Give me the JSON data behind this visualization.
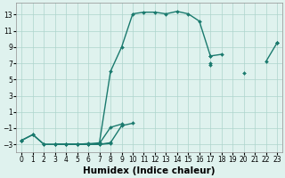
{
  "xlabel": "Humidex (Indice chaleur)",
  "x_data": [
    0,
    1,
    2,
    3,
    4,
    5,
    6,
    7,
    8,
    9,
    10,
    11,
    12,
    13,
    14,
    15,
    16,
    17,
    18,
    19,
    20,
    21,
    22,
    23
  ],
  "line_main": {
    "y": [
      -2.5,
      -1.8,
      -3.0,
      -3.0,
      -3.0,
      -3.0,
      -3.0,
      -2.8,
      6.0,
      9.0,
      13.1,
      13.3,
      13.3,
      13.1,
      13.4,
      13.1,
      12.2,
      7.9,
      null,
      null,
      null,
      null,
      null,
      null
    ],
    "color": "#1a7a6e",
    "linewidth": 1.0
  },
  "line_diag1": {
    "y": [
      -2.5,
      null,
      null,
      -3.0,
      -3.0,
      -3.0,
      -3.0,
      -3.0,
      -2.8,
      -0.7,
      -0.4,
      null,
      null,
      null,
      null,
      null,
      null,
      7.0,
      null,
      null,
      null,
      null,
      null,
      9.5
    ],
    "color": "#1a7a6e",
    "linewidth": 1.0
  },
  "line_diag2": {
    "y": [
      -2.5,
      null,
      null,
      -3.0,
      -3.0,
      -3.0,
      -2.9,
      -2.9,
      -0.9,
      -0.5,
      null,
      null,
      null,
      null,
      null,
      null,
      null,
      6.8,
      null,
      null,
      null,
      null,
      null,
      9.5
    ],
    "color": "#1a7a6e",
    "linewidth": 1.0
  },
  "line_zigzag": {
    "y": [
      null,
      null,
      null,
      null,
      null,
      null,
      null,
      null,
      null,
      null,
      null,
      null,
      null,
      null,
      null,
      null,
      null,
      7.9,
      8.1,
      null,
      5.8,
      null,
      7.2,
      9.5
    ],
    "color": "#1a7a6e",
    "linewidth": 1.0
  },
  "line_flat": {
    "y": [
      -2.5,
      -1.8,
      -3.0,
      -3.0,
      -3.0,
      -3.0,
      -3.0,
      -3.0,
      -2.9,
      null,
      null,
      null,
      null,
      null,
      null,
      null,
      null,
      null,
      null,
      null,
      null,
      null,
      null,
      null
    ],
    "color": "#1a7a6e",
    "linewidth": 1.0
  },
  "background_color": "#dff2ee",
  "grid_color": "#aed4cc",
  "xlim": [
    -0.5,
    23.5
  ],
  "ylim": [
    -4.0,
    14.5
  ],
  "yticks": [
    -3,
    -1,
    1,
    3,
    5,
    7,
    9,
    11,
    13
  ],
  "xticks": [
    0,
    1,
    2,
    3,
    4,
    5,
    6,
    7,
    8,
    9,
    10,
    11,
    12,
    13,
    14,
    15,
    16,
    17,
    18,
    19,
    20,
    21,
    22,
    23
  ],
  "tick_fontsize": 5.5,
  "label_fontsize": 7.5
}
